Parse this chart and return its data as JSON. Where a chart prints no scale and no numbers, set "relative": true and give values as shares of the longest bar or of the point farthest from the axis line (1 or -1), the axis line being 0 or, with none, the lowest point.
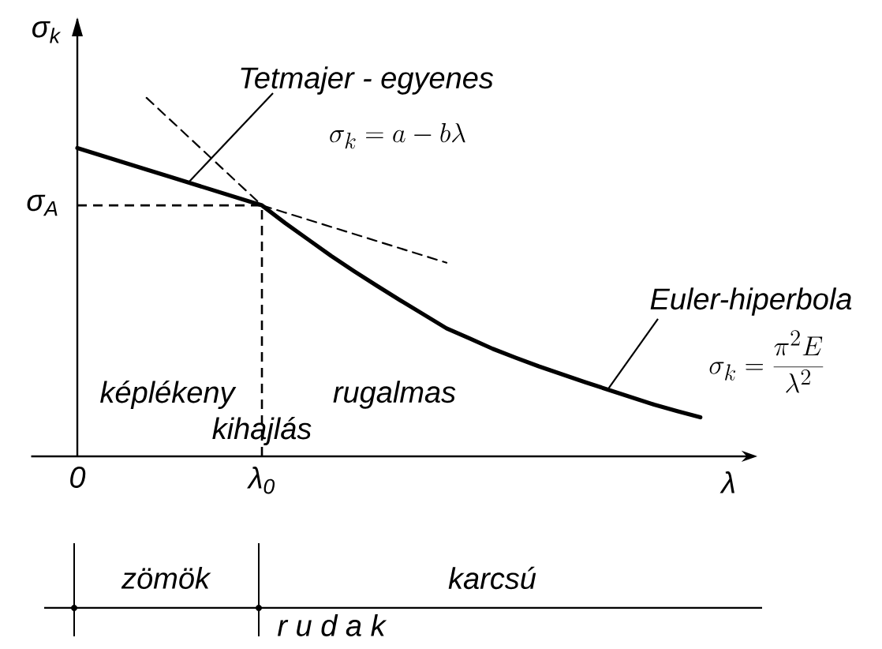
{
  "chart_data": {
    "type": "line",
    "relative": true,
    "xlabel": "λ",
    "ylabel": "σ$_{k}$",
    "categories": [
      "0",
      null,
      null,
      null,
      null,
      null,
      null,
      null,
      "λ$_{0}$",
      null,
      null,
      null,
      null,
      null,
      null,
      null,
      null,
      null,
      null,
      null,
      null,
      null,
      null,
      null,
      null,
      null,
      null,
      null,
      null,
      null
    ],
    "series": [
      {
        "color": "#000000",
        "line_style": "solid",
        "values": [
          0.86,
          0.84,
          0.82,
          0.8,
          0.78,
          0.76,
          0.74,
          0.72,
          0.7,
          0.651,
          0.605,
          0.559,
          0.516,
          0.475,
          0.435,
          0.396,
          0.357,
          0.329,
          0.3,
          0.275,
          0.251,
          0.229,
          0.207,
          0.186,
          0.165,
          0.144,
          0.126,
          0.109,
          null,
          null
        ]
      },
      {
        "color": "#000000",
        "line_style": "dashed",
        "values": [
          null,
          null,
          null,
          1.0,
          0.94,
          0.88,
          0.82,
          0.76,
          0.7,
          0.68,
          0.66,
          0.64,
          0.62,
          0.6,
          0.58,
          0.56,
          0.54,
          null,
          null,
          null,
          null,
          null,
          null,
          null,
          null,
          null,
          null,
          null,
          null,
          null
        ]
      }
    ],
    "ref_lines": [
      {
        "axis": "x",
        "value": "λ$_{0}$",
        "line_style": "dashed"
      },
      {
        "axis": "y",
        "value": 0.7,
        "label": "σ$_{A}$",
        "line_style": "dashed"
      }
    ],
    "annotations": [
      "Tetmajer - egyenes",
      "\\sigma_k = a - b\\lambda",
      "Euler-hiperbola",
      "\\sigma_k = \\frac{\\pi^2 E}{\\lambda^2}",
      "képlékeny",
      "kihajlás",
      "rugalmas",
      "zömök",
      "karcsú",
      "r u d a k"
    ]
  }
}
